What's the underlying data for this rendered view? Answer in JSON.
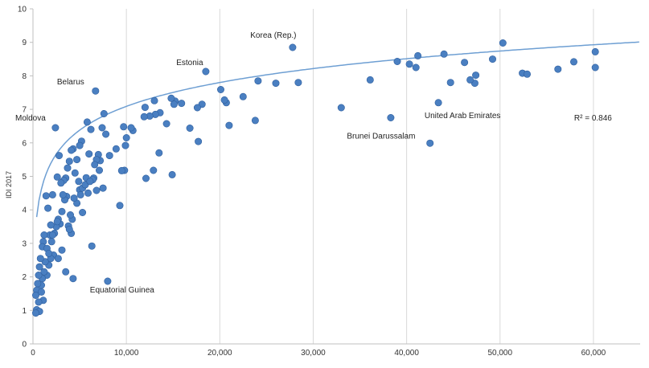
{
  "chart_data": {
    "type": "scatter",
    "title": "",
    "xlabel": "",
    "ylabel": "IDI 2017",
    "xlim": [
      0,
      65000
    ],
    "ylim": [
      0,
      10
    ],
    "x_ticks": [
      0,
      10000,
      20000,
      30000,
      40000,
      50000,
      60000
    ],
    "x_tick_labels": [
      "0",
      "10,000",
      "20,000",
      "30,000",
      "40,000",
      "50,000",
      "60,000"
    ],
    "y_ticks": [
      0,
      1,
      2,
      3,
      4,
      5,
      6,
      7,
      8,
      9,
      10
    ],
    "y_tick_labels": [
      "0",
      "1",
      "2",
      "3",
      "4",
      "5",
      "6",
      "7",
      "8",
      "9",
      "10"
    ],
    "grid": "vertical",
    "legend": "none",
    "colors": {
      "point": "#4a7fc1",
      "point_edge": "#2f5f9e",
      "trend": "#6e9fd3",
      "grid": "#d9d9d9"
    },
    "trendline": {
      "type": "logarithmic",
      "a": -2.36,
      "b": 1.026,
      "r2_label": "R² = 0.846"
    },
    "annotations": [
      {
        "text": "Korea (Rep.)",
        "x": 27800,
        "y": 8.85
      },
      {
        "text": "Estonia",
        "x": 18500,
        "y": 8.1
      },
      {
        "text": "Belarus",
        "x": 6700,
        "y": 7.55
      },
      {
        "text": "Moldova",
        "x": 2400,
        "y": 6.45
      },
      {
        "text": "Brunei Darussalam",
        "x": 38300,
        "y": 6.75
      },
      {
        "text": "United Arab Emirates",
        "x": 43300,
        "y": 7.2
      },
      {
        "text": "Equatorial Guinea",
        "x": 7900,
        "y": 1.85
      },
      {
        "text": "R² = 0.846",
        "x": 60000,
        "y": 7.1
      }
    ],
    "points": [
      [
        27800,
        8.85
      ],
      [
        50300,
        8.98
      ],
      [
        60200,
        8.72
      ],
      [
        44000,
        8.65
      ],
      [
        41200,
        8.6
      ],
      [
        39000,
        8.43
      ],
      [
        40300,
        8.35
      ],
      [
        41000,
        8.25
      ],
      [
        46200,
        8.4
      ],
      [
        49200,
        8.5
      ],
      [
        57900,
        8.42
      ],
      [
        60200,
        8.25
      ],
      [
        56200,
        8.2
      ],
      [
        52400,
        8.08
      ],
      [
        52900,
        8.05
      ],
      [
        47400,
        8.02
      ],
      [
        47300,
        7.78
      ],
      [
        46800,
        7.88
      ],
      [
        44700,
        7.8
      ],
      [
        43400,
        7.2
      ],
      [
        38300,
        6.75
      ],
      [
        42500,
        5.99
      ],
      [
        36100,
        7.88
      ],
      [
        33000,
        7.05
      ],
      [
        28400,
        7.8
      ],
      [
        26000,
        7.78
      ],
      [
        24100,
        7.85
      ],
      [
        23800,
        6.67
      ],
      [
        22500,
        7.38
      ],
      [
        20700,
        7.2
      ],
      [
        20500,
        7.28
      ],
      [
        20100,
        7.59
      ],
      [
        21000,
        6.52
      ],
      [
        18500,
        8.13
      ],
      [
        18100,
        7.15
      ],
      [
        17600,
        7.05
      ],
      [
        17700,
        6.04
      ],
      [
        16800,
        6.44
      ],
      [
        15900,
        7.18
      ],
      [
        15200,
        7.25
      ],
      [
        14800,
        7.33
      ],
      [
        15100,
        7.15
      ],
      [
        14300,
        6.57
      ],
      [
        13600,
        6.9
      ],
      [
        13500,
        5.7
      ],
      [
        13100,
        6.85
      ],
      [
        12500,
        6.8
      ],
      [
        13000,
        7.26
      ],
      [
        12000,
        7.06
      ],
      [
        11900,
        6.78
      ],
      [
        12100,
        4.94
      ],
      [
        12900,
        5.18
      ],
      [
        14900,
        5.05
      ],
      [
        10700,
        6.37
      ],
      [
        10500,
        6.45
      ],
      [
        9700,
        6.48
      ],
      [
        10000,
        6.15
      ],
      [
        9900,
        5.92
      ],
      [
        9800,
        5.18
      ],
      [
        9500,
        5.17
      ],
      [
        9300,
        4.13
      ],
      [
        8900,
        5.82
      ],
      [
        8200,
        5.62
      ],
      [
        7800,
        6.26
      ],
      [
        7600,
        6.87
      ],
      [
        7400,
        6.45
      ],
      [
        7200,
        5.47
      ],
      [
        7000,
        5.65
      ],
      [
        6800,
        5.5
      ],
      [
        6600,
        5.35
      ],
      [
        6200,
        6.4
      ],
      [
        6000,
        5.67
      ],
      [
        5800,
        6.62
      ],
      [
        6700,
        7.55
      ],
      [
        7500,
        4.65
      ],
      [
        6800,
        4.58
      ],
      [
        6500,
        4.95
      ],
      [
        6400,
        4.9
      ],
      [
        6300,
        2.92
      ],
      [
        8000,
        1.87
      ],
      [
        5700,
        4.96
      ],
      [
        5200,
        6.05
      ],
      [
        5000,
        5.92
      ],
      [
        4700,
        5.5
      ],
      [
        4500,
        5.1
      ],
      [
        4300,
        5.82
      ],
      [
        4100,
        5.78
      ],
      [
        3900,
        5.45
      ],
      [
        3700,
        5.25
      ],
      [
        3500,
        4.95
      ],
      [
        3300,
        4.88
      ],
      [
        3000,
        4.8
      ],
      [
        2800,
        5.62
      ],
      [
        2600,
        4.98
      ],
      [
        2400,
        6.45
      ],
      [
        4900,
        4.85
      ],
      [
        5000,
        4.6
      ],
      [
        5100,
        4.45
      ],
      [
        5300,
        3.92
      ],
      [
        4700,
        4.2
      ],
      [
        4400,
        4.35
      ],
      [
        4200,
        3.72
      ],
      [
        4000,
        3.85
      ],
      [
        3800,
        3.52
      ],
      [
        3600,
        4.4
      ],
      [
        3400,
        4.3
      ],
      [
        3200,
        4.45
      ],
      [
        3100,
        3.95
      ],
      [
        2900,
        3.58
      ],
      [
        2700,
        3.72
      ],
      [
        2500,
        3.5
      ],
      [
        2300,
        3.3
      ],
      [
        2600,
        3.65
      ],
      [
        2100,
        4.45
      ],
      [
        1900,
        3.55
      ],
      [
        1800,
        3.25
      ],
      [
        1600,
        4.05
      ],
      [
        1400,
        4.42
      ],
      [
        1200,
        3.25
      ],
      [
        1100,
        3.05
      ],
      [
        1000,
        2.9
      ],
      [
        2000,
        3.05
      ],
      [
        2200,
        2.65
      ],
      [
        2700,
        2.55
      ],
      [
        3100,
        2.8
      ],
      [
        3500,
        2.15
      ],
      [
        4300,
        1.95
      ],
      [
        4100,
        3.3
      ],
      [
        3900,
        3.42
      ],
      [
        1900,
        2.55
      ],
      [
        1700,
        2.35
      ],
      [
        1500,
        2.05
      ],
      [
        1300,
        2.45
      ],
      [
        1200,
        2.15
      ],
      [
        1000,
        1.95
      ],
      [
        900,
        1.75
      ],
      [
        800,
        2.55
      ],
      [
        700,
        2.3
      ],
      [
        600,
        2.05
      ],
      [
        500,
        1.8
      ],
      [
        400,
        1.6
      ],
      [
        300,
        1.45
      ],
      [
        900,
        1.55
      ],
      [
        1100,
        1.3
      ],
      [
        600,
        1.25
      ],
      [
        400,
        1.02
      ],
      [
        700,
        0.97
      ],
      [
        300,
        0.92
      ],
      [
        1500,
        2.85
      ],
      [
        1700,
        2.7
      ],
      [
        2100,
        3.25
      ],
      [
        5300,
        4.65
      ],
      [
        5600,
        4.75
      ],
      [
        5900,
        4.5
      ],
      [
        6100,
        4.85
      ],
      [
        7100,
        5.18
      ]
    ]
  }
}
